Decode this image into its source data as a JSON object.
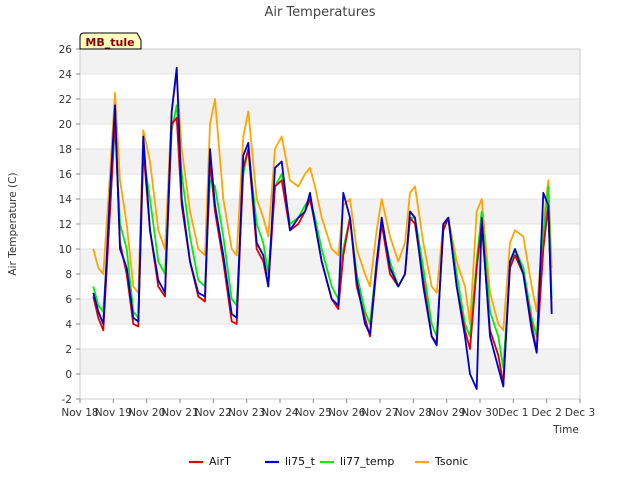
{
  "chart_data": {
    "type": "line",
    "title": "Air Temperatures",
    "xlabel": "Time",
    "ylabel": "Air Temperature (C)",
    "station_label": "MB_tule",
    "xlim": [
      0,
      15
    ],
    "ylim": [
      -2,
      26
    ],
    "yticks": [
      -2,
      0,
      2,
      4,
      6,
      8,
      10,
      12,
      14,
      16,
      18,
      20,
      22,
      24,
      26
    ],
    "xticks": [
      {
        "pos": 0,
        "label": "Nov 18"
      },
      {
        "pos": 1,
        "label": "Nov 19"
      },
      {
        "pos": 2,
        "label": "Nov 20"
      },
      {
        "pos": 3,
        "label": "Nov 21"
      },
      {
        "pos": 4,
        "label": "Nov 22"
      },
      {
        "pos": 5,
        "label": "Nov 23"
      },
      {
        "pos": 6,
        "label": "Nov 24"
      },
      {
        "pos": 7,
        "label": "Nov 25"
      },
      {
        "pos": 8,
        "label": "Nov 26"
      },
      {
        "pos": 9,
        "label": "Nov 27"
      },
      {
        "pos": 10,
        "label": "Nov 28"
      },
      {
        "pos": 11,
        "label": "Nov 29"
      },
      {
        "pos": 12,
        "label": "Nov 30"
      },
      {
        "pos": 13,
        "label": "Dec 1"
      },
      {
        "pos": 14,
        "label": "Dec 2"
      },
      {
        "pos": 15,
        "label": "Dec 3"
      }
    ],
    "grid": "horizontal-bands",
    "legend_position": "bottom",
    "series": [
      {
        "name": "AirT",
        "color": "#dd0000",
        "x": [
          0.4,
          0.55,
          0.7,
          0.9,
          1.05,
          1.2,
          1.4,
          1.6,
          1.75,
          1.9,
          2.1,
          2.35,
          2.55,
          2.75,
          2.9,
          3.05,
          3.3,
          3.55,
          3.75,
          3.9,
          4.05,
          4.3,
          4.55,
          4.7,
          4.9,
          5.05,
          5.3,
          5.5,
          5.65,
          5.85,
          6.05,
          6.3,
          6.55,
          6.75,
          6.9,
          7.05,
          7.25,
          7.55,
          7.75,
          7.9,
          8.1,
          8.3,
          8.55,
          8.7,
          8.9,
          9.05,
          9.3,
          9.55,
          9.75,
          9.9,
          10.05,
          10.3,
          10.55,
          10.7,
          10.9,
          11.05,
          11.3,
          11.55,
          11.7,
          11.9,
          12.05,
          12.3,
          12.55,
          12.7,
          12.9,
          13.05,
          13.3,
          13.55,
          13.7,
          13.9,
          14.05,
          14.15
        ],
        "y": [
          6.2,
          4.5,
          3.5,
          13.0,
          20.5,
          10.5,
          8.0,
          4.0,
          3.8,
          18.0,
          11.5,
          7.0,
          6.2,
          20.0,
          20.5,
          13.5,
          9.0,
          6.2,
          5.8,
          17.0,
          13.0,
          9.0,
          4.2,
          4.0,
          16.5,
          18.0,
          10.0,
          9.0,
          7.0,
          15.0,
          15.5,
          11.5,
          12.0,
          13.0,
          14.0,
          12.0,
          9.0,
          6.0,
          5.2,
          9.5,
          12.5,
          7.0,
          4.5,
          3.0,
          8.5,
          12.0,
          8.0,
          7.0,
          8.0,
          12.5,
          12.0,
          7.5,
          3.0,
          2.5,
          11.5,
          12.5,
          7.0,
          3.5,
          2.0,
          8.5,
          12.0,
          3.5,
          1.5,
          -0.8,
          8.5,
          9.5,
          8.0,
          4.0,
          1.8,
          10.0,
          13.5,
          5.0
        ]
      },
      {
        "name": "li75_t",
        "color": "#0000cc",
        "x": [
          0.4,
          0.55,
          0.7,
          0.9,
          1.05,
          1.2,
          1.4,
          1.6,
          1.75,
          1.9,
          2.1,
          2.35,
          2.55,
          2.75,
          2.9,
          3.05,
          3.3,
          3.55,
          3.75,
          3.9,
          4.05,
          4.3,
          4.55,
          4.7,
          4.9,
          5.05,
          5.3,
          5.5,
          5.65,
          5.85,
          6.05,
          6.3,
          6.55,
          6.75,
          6.9,
          7.05,
          7.25,
          7.55,
          7.75,
          7.9,
          8.1,
          8.3,
          8.55,
          8.7,
          8.9,
          9.05,
          9.3,
          9.55,
          9.75,
          9.9,
          10.05,
          10.3,
          10.55,
          10.7,
          10.9,
          11.05,
          11.3,
          11.55,
          11.7,
          11.9,
          12.05,
          12.3,
          12.55,
          12.7,
          12.9,
          13.05,
          13.3,
          13.55,
          13.7,
          13.9,
          14.05,
          14.15
        ],
        "y": [
          6.5,
          5.0,
          4.0,
          14.5,
          21.5,
          10.0,
          8.5,
          4.5,
          4.2,
          19.0,
          11.5,
          7.5,
          6.5,
          21.0,
          24.5,
          14.0,
          9.0,
          6.5,
          6.2,
          18.0,
          13.5,
          9.5,
          4.8,
          4.5,
          17.5,
          18.5,
          10.5,
          9.5,
          7.0,
          16.5,
          17.0,
          11.5,
          12.5,
          13.0,
          14.5,
          12.0,
          9.0,
          6.0,
          5.5,
          14.5,
          12.5,
          7.5,
          4.0,
          3.2,
          9.0,
          12.5,
          8.5,
          7.0,
          8.0,
          13.0,
          12.5,
          7.0,
          3.0,
          2.3,
          12.0,
          12.5,
          7.0,
          3.0,
          0.0,
          -1.2,
          12.5,
          3.0,
          0.5,
          -1.0,
          9.0,
          10.0,
          8.0,
          3.5,
          1.7,
          14.5,
          13.5,
          4.8
        ]
      },
      {
        "name": "li77_temp",
        "color": "#00ee00",
        "x": [
          0.4,
          0.55,
          0.7,
          0.9,
          1.05,
          1.2,
          1.4,
          1.6,
          1.75,
          1.9,
          2.1,
          2.35,
          2.55,
          2.75,
          2.9,
          3.05,
          3.3,
          3.55,
          3.75,
          3.9,
          4.05,
          4.3,
          4.55,
          4.7,
          4.9,
          5.05,
          5.3,
          5.5,
          5.65,
          5.85,
          6.05,
          6.3,
          6.55,
          6.75,
          6.9,
          7.05,
          7.25,
          7.55,
          7.75,
          7.9,
          8.1,
          8.3,
          8.55,
          8.7,
          8.9,
          9.05,
          9.3,
          9.55,
          9.75,
          9.9,
          10.05,
          10.3,
          10.55,
          10.7,
          10.9,
          11.05,
          11.3,
          11.55,
          11.7,
          11.9,
          12.05,
          12.3,
          12.55,
          12.7,
          12.9,
          13.05,
          13.3,
          13.55,
          13.7,
          13.9,
          14.05,
          14.15
        ],
        "y": [
          7.0,
          5.5,
          5.0,
          13.0,
          20.0,
          12.0,
          10.0,
          5.0,
          4.5,
          17.5,
          14.0,
          9.0,
          8.0,
          19.5,
          21.5,
          16.0,
          11.0,
          7.5,
          7.0,
          15.5,
          15.0,
          11.0,
          6.0,
          5.5,
          16.0,
          18.0,
          12.0,
          10.5,
          8.0,
          15.0,
          16.0,
          12.0,
          12.5,
          13.5,
          14.0,
          12.5,
          10.0,
          7.0,
          6.0,
          10.0,
          12.5,
          8.0,
          5.0,
          4.0,
          9.0,
          12.0,
          9.0,
          7.0,
          8.0,
          12.5,
          12.5,
          8.5,
          4.0,
          3.0,
          11.5,
          12.5,
          8.0,
          4.0,
          3.0,
          9.0,
          13.0,
          5.0,
          3.0,
          0.5,
          8.5,
          10.0,
          8.5,
          4.5,
          3.0,
          11.0,
          15.0,
          6.0
        ]
      },
      {
        "name": "Tsonic",
        "color": "#ffa500",
        "x": [
          0.4,
          0.55,
          0.7,
          0.9,
          1.05,
          1.2,
          1.4,
          1.6,
          1.75,
          1.9,
          2.1,
          2.35,
          2.55,
          2.75,
          2.9,
          3.05,
          3.3,
          3.55,
          3.75,
          3.9,
          4.05,
          4.3,
          4.55,
          4.7,
          4.9,
          5.05,
          5.3,
          5.5,
          5.65,
          5.85,
          6.05,
          6.3,
          6.55,
          6.75,
          6.9,
          7.05,
          7.25,
          7.55,
          7.75,
          7.9,
          8.1,
          8.3,
          8.55,
          8.7,
          8.9,
          9.05,
          9.3,
          9.55,
          9.75,
          9.9,
          10.05,
          10.3,
          10.55,
          10.7,
          10.9,
          11.05,
          11.3,
          11.55,
          11.7,
          11.9,
          12.05,
          12.3,
          12.55,
          12.7,
          12.9,
          13.05,
          13.3,
          13.55,
          13.7,
          13.9,
          14.05,
          14.15
        ],
        "y": [
          10.0,
          8.5,
          8.0,
          16.0,
          22.5,
          15.5,
          12.0,
          7.0,
          6.5,
          19.5,
          17.0,
          11.5,
          10.0,
          21.0,
          24.0,
          18.0,
          13.0,
          10.0,
          9.5,
          20.0,
          22.0,
          14.0,
          10.0,
          9.5,
          19.0,
          21.0,
          14.0,
          12.5,
          11.0,
          18.0,
          19.0,
          15.5,
          15.0,
          16.0,
          16.5,
          15.0,
          12.5,
          10.0,
          9.5,
          13.5,
          14.0,
          10.0,
          8.0,
          7.0,
          11.5,
          14.0,
          11.0,
          9.0,
          10.5,
          14.5,
          15.0,
          10.5,
          7.0,
          6.5,
          12.0,
          12.5,
          9.0,
          7.0,
          4.0,
          13.0,
          14.0,
          6.5,
          4.0,
          3.5,
          10.5,
          11.5,
          11.0,
          7.0,
          5.0,
          12.0,
          15.5,
          8.5
        ]
      }
    ]
  }
}
